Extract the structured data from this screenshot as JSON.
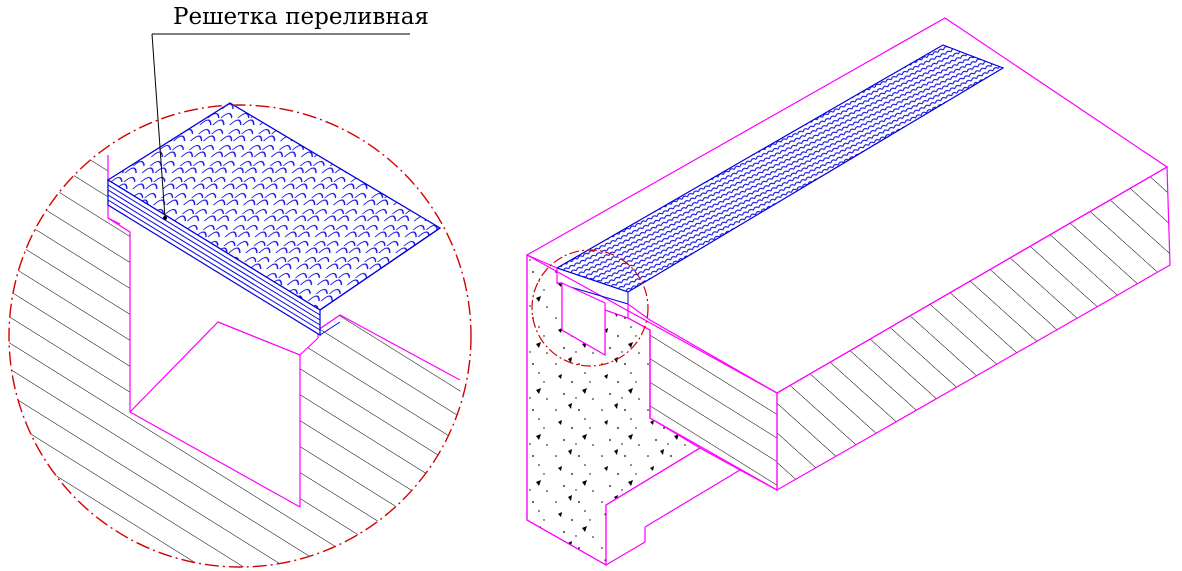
{
  "callout": {
    "label": "Решетка переливная"
  },
  "colors": {
    "outline": "#ff00ff",
    "grate": "#0000e0",
    "hatch": "#000000",
    "detail_circle": "#d40000",
    "leader": "#000000",
    "background": "#ffffff"
  },
  "views": [
    "detail-view-enlarged",
    "isometric-overflow-channel"
  ]
}
